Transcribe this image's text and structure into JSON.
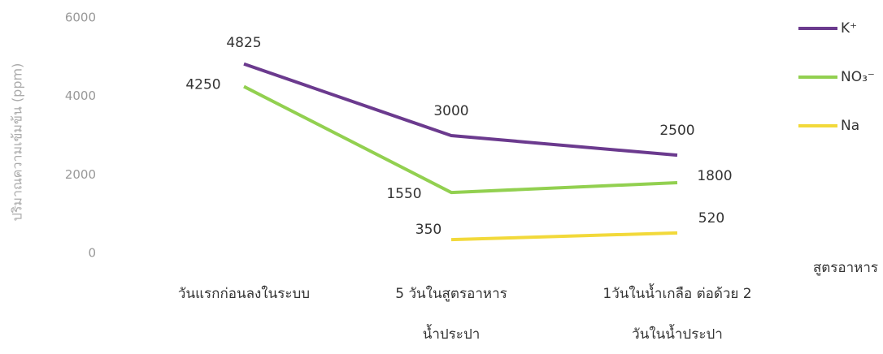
{
  "chart_data": {
    "type": "line",
    "y_label": "ปริมาณความเข้มข้น (ppm)",
    "x_label": "สูตรอาหาร",
    "categories": [
      [
        "วันแรกก่อนลงในระบบ"
      ],
      [
        "5 วันในสูตรอาหาร",
        "น้ำประปา"
      ],
      [
        "1วันในน้ำเกลือ ต่อด้วย 2",
        "วันในน้ำประปา"
      ]
    ],
    "series": [
      {
        "name": "K⁺",
        "color": "#6b3a8e",
        "values": [
          4825,
          3000,
          2500
        ]
      },
      {
        "name": "NO₃⁻",
        "color": "#92d050",
        "values": [
          4250,
          1550,
          1800
        ]
      },
      {
        "name": "Na",
        "color": "#f2d93a",
        "values": [
          null,
          350,
          520
        ]
      }
    ],
    "ylim": [
      0,
      6000
    ],
    "yticks": [
      0,
      2000,
      4000,
      6000
    ],
    "grid": false,
    "legend": "right"
  }
}
